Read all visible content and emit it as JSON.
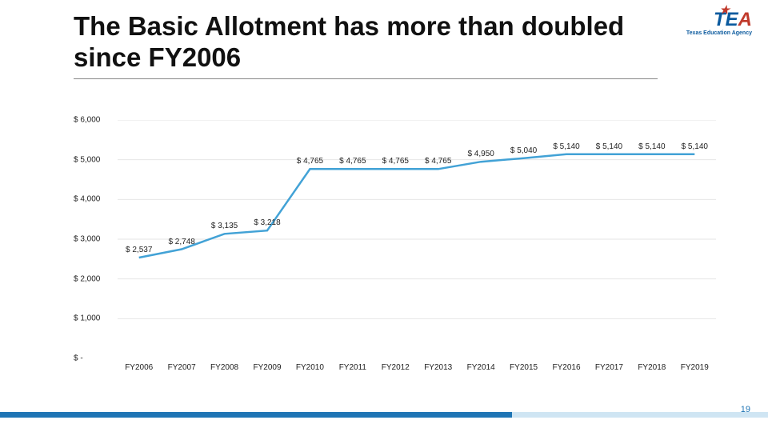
{
  "title": "The Basic Allotment has more than doubled since FY2006",
  "logo": {
    "text_t": "T",
    "text_e": "E",
    "text_a": "A",
    "subtitle": "Texas Education Agency",
    "blue": "#0b5a9e",
    "red": "#c0392b"
  },
  "page_number": "19",
  "chart": {
    "type": "line",
    "background_color": "#ffffff",
    "grid_color": "#e6e6e6",
    "line_color": "#42a2d6",
    "line_width": 2.5,
    "ymin": 0,
    "ymax": 6000,
    "ytick_step": 1000,
    "ytick_labels": [
      "$ -",
      "$ 1,000",
      "$ 2,000",
      "$ 3,000",
      "$ 4,000",
      "$ 5,000",
      "$ 6,000"
    ],
    "categories": [
      "FY2006",
      "FY2007",
      "FY2008",
      "FY2009",
      "FY2010",
      "FY2011",
      "FY2012",
      "FY2013",
      "FY2014",
      "FY2015",
      "FY2016",
      "FY2017",
      "FY2018",
      "FY2019"
    ],
    "values": [
      2537,
      2748,
      3135,
      3218,
      4765,
      4765,
      4765,
      4765,
      4950,
      5040,
      5140,
      5140,
      5140,
      5140
    ],
    "value_labels": [
      "$ 2,537",
      "$ 2,748",
      "$ 3,135",
      "$ 3,218",
      "$ 4,765",
      "$ 4,765",
      "$ 4,765",
      "$ 4,765",
      "$ 4,950",
      "$ 5,040",
      "$ 5,140",
      "$ 5,140",
      "$ 5,140",
      "$ 5,140"
    ],
    "tick_fontsize": 10,
    "label_fontsize": 10,
    "text_color": "#222222"
  },
  "footer": {
    "accent_color": "#1f75b5",
    "light_color": "#cfe5f3"
  }
}
